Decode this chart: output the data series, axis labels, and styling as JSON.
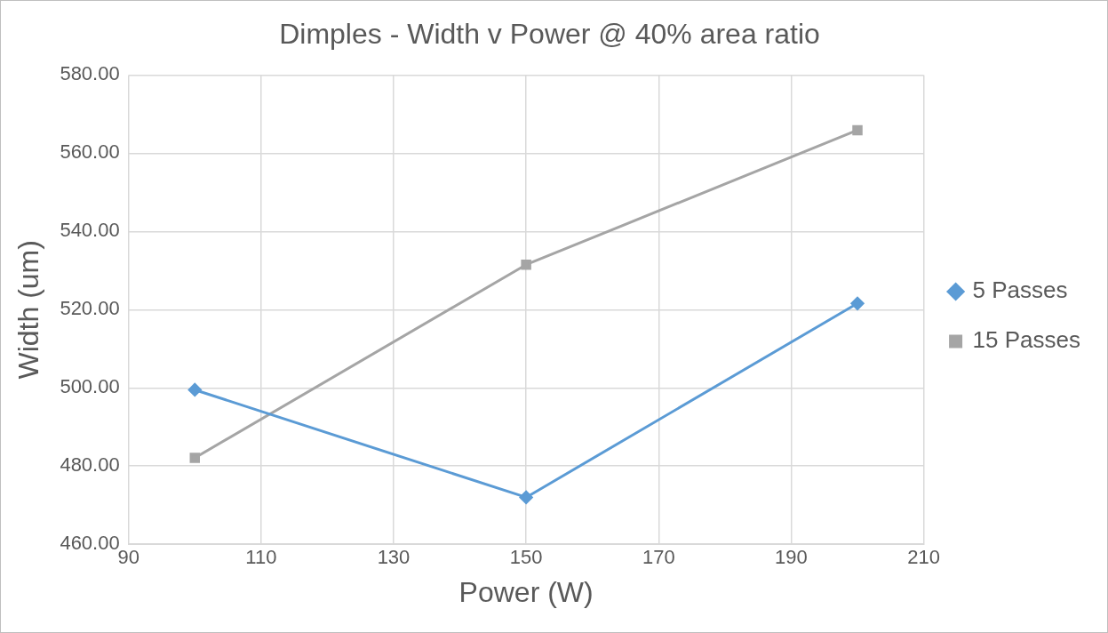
{
  "chart_data": {
    "type": "line",
    "title": "Dimples - Width v Power @ 40% area ratio",
    "xlabel": "Power (W)",
    "ylabel": "Width (um)",
    "x": [
      100,
      150,
      200
    ],
    "series": [
      {
        "name": "5 Passes",
        "color": "#5b9bd5",
        "marker": "diamond",
        "values": [
          499.5,
          472,
          521.6
        ]
      },
      {
        "name": "15 Passes",
        "color": "#a5a5a5",
        "marker": "square",
        "values": [
          482.1,
          531.5,
          565.9
        ]
      }
    ],
    "xlim": [
      90,
      210
    ],
    "xticks": [
      90,
      110,
      130,
      150,
      170,
      190,
      210
    ],
    "ylim": [
      460,
      580
    ],
    "yticks": [
      {
        "value": 460,
        "label": "460.00"
      },
      {
        "value": 480,
        "label": "480.00"
      },
      {
        "value": 500,
        "label": "500.00"
      },
      {
        "value": 520,
        "label": "520.00"
      },
      {
        "value": 540,
        "label": "540.00"
      },
      {
        "value": 560,
        "label": "560.00"
      },
      {
        "value": 580,
        "label": "580.00"
      }
    ],
    "grid": true,
    "legend": "right",
    "line_style": "solid"
  }
}
